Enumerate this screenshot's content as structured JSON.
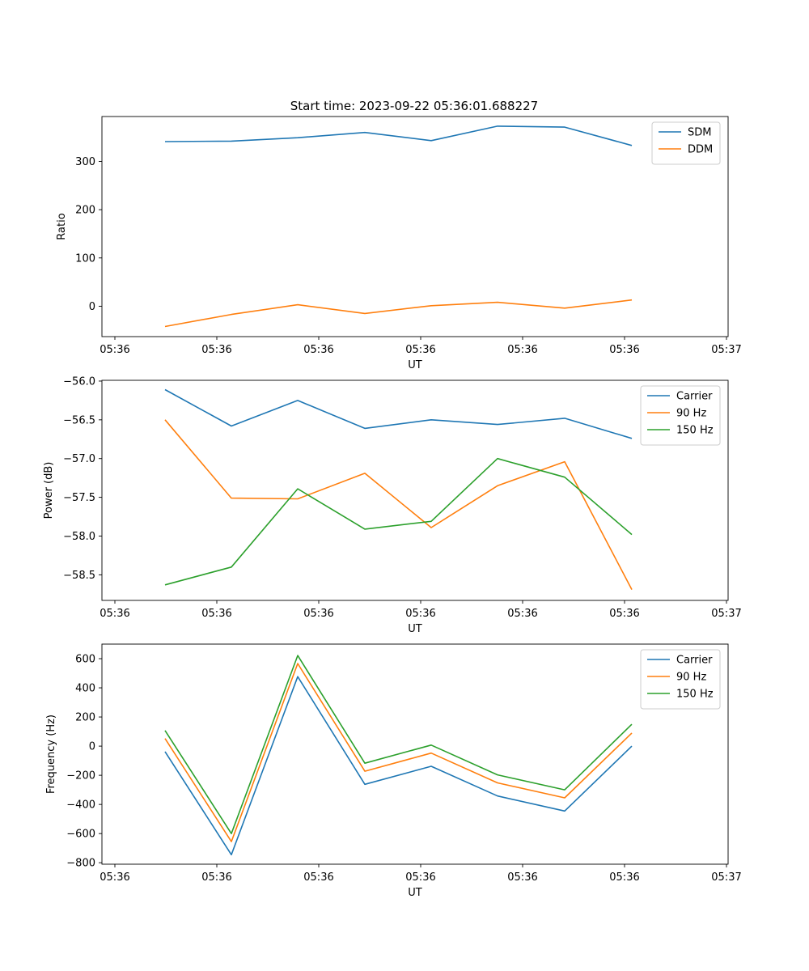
{
  "figure_title": "Start time: 2023-09-22 05:36:01.688227",
  "colors": {
    "blue": "#1f77b4",
    "orange": "#ff7f0e",
    "green": "#2ca02c"
  },
  "chart_data": [
    {
      "type": "line",
      "xlabel": "UT",
      "ylabel": "Ratio",
      "xtick_labels": [
        "05:36",
        "05:36",
        "05:36",
        "05:36",
        "05:36",
        "05:36",
        "05:36"
      ],
      "xtick_extra": "05:37",
      "yticks": [
        0,
        100,
        200,
        300
      ],
      "ytick_labels": [
        "0",
        "100",
        "200",
        "300"
      ],
      "ylim": [
        -63,
        393
      ],
      "grid": false,
      "legend_position": "top-right",
      "series": [
        {
          "name": "SDM",
          "color": "#1f77b4",
          "values": [
            341,
            342,
            349,
            360,
            343,
            373,
            371,
            333
          ]
        },
        {
          "name": "DDM",
          "color": "#ff7f0e",
          "values": [
            -42,
            -17,
            3,
            -15,
            1,
            8,
            -4,
            13
          ]
        }
      ]
    },
    {
      "type": "line",
      "xlabel": "UT",
      "ylabel": "Power (dB)",
      "xtick_labels": [
        "05:36",
        "05:36",
        "05:36",
        "05:36",
        "05:36",
        "05:36",
        "05:36"
      ],
      "xtick_extra": "05:37",
      "yticks": [
        -58.5,
        -58.0,
        -57.5,
        -57.0,
        -56.5,
        -56.0
      ],
      "ytick_labels": [
        "−58.5",
        "−58.0",
        "−57.5",
        "−57.0",
        "−56.5",
        "−56.0"
      ],
      "ylim": [
        -58.83,
        -55.99
      ],
      "grid": false,
      "legend_position": "top-right",
      "series": [
        {
          "name": "Carrier",
          "color": "#1f77b4",
          "values": [
            -56.11,
            -56.58,
            -56.25,
            -56.61,
            -56.5,
            -56.56,
            -56.48,
            -56.74
          ]
        },
        {
          "name": "90 Hz",
          "color": "#ff7f0e",
          "values": [
            -56.5,
            -57.51,
            -57.52,
            -57.19,
            -57.89,
            -57.35,
            -57.04,
            -58.69
          ]
        },
        {
          "name": "150 Hz",
          "color": "#2ca02c",
          "values": [
            -58.63,
            -58.4,
            -57.39,
            -57.91,
            -57.81,
            -57.0,
            -57.24,
            -57.98
          ]
        }
      ]
    },
    {
      "type": "line",
      "xlabel": "UT",
      "ylabel": "Frequency (Hz)",
      "xtick_labels": [
        "05:36",
        "05:36",
        "05:36",
        "05:36",
        "05:36",
        "05:36",
        "05:36"
      ],
      "xtick_extra": "05:37",
      "yticks": [
        -800,
        -600,
        -400,
        -200,
        0,
        200,
        400,
        600
      ],
      "ytick_labels": [
        "−800",
        "−600",
        "−400",
        "−200",
        "0",
        "200",
        "400",
        "600"
      ],
      "ylim": [
        -810,
        700
      ],
      "grid": false,
      "legend_position": "top-right",
      "series": [
        {
          "name": "Carrier",
          "color": "#1f77b4",
          "values": [
            -38,
            -745,
            477,
            -262,
            -138,
            -342,
            -445,
            0
          ]
        },
        {
          "name": "90 Hz",
          "color": "#ff7f0e",
          "values": [
            52,
            -655,
            567,
            -172,
            -48,
            -252,
            -355,
            90
          ]
        },
        {
          "name": "150 Hz",
          "color": "#2ca02c",
          "values": [
            107,
            -600,
            622,
            -117,
            7,
            -197,
            -300,
            150
          ]
        }
      ]
    }
  ]
}
